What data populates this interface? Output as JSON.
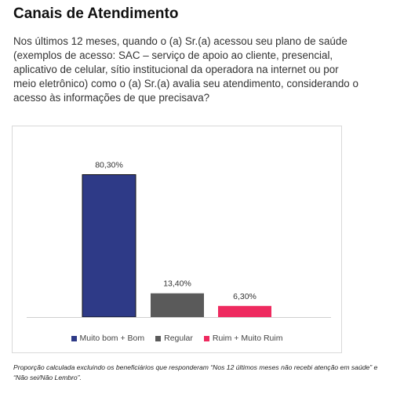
{
  "header": {
    "title": "Canais de Atendimento",
    "question": "Nos últimos 12 meses, quando o (a) Sr.(a) acessou seu plano de saúde (exemplos de acesso: SAC – serviço de apoio ao cliente, presencial, aplicativo de celular, sítio institucional da operadora na internet ou por meio eletrônico) como o (a) Sr.(a) avalia seu atendimento, considerando o acesso às informações de que precisava?"
  },
  "chart_data": {
    "type": "bar",
    "title": "",
    "xlabel": "",
    "ylabel": "",
    "ylim": [
      0,
      100
    ],
    "grid": false,
    "legend_position": "bottom",
    "categories": [
      "Muito bom + Bom",
      "Regular",
      "Ruim + Muito Ruim"
    ],
    "values": [
      80.3,
      13.4,
      6.3
    ],
    "data_labels": [
      "80,30%",
      "13,40%",
      "6,30%"
    ],
    "colors": [
      "#2e3a87",
      "#5a5a5a",
      "#ee2a5f"
    ]
  },
  "footnote": "Proporção calculada excluindo os beneficiários que responderam “Nos 12 últimos meses não recebi atenção em saúde” e “Não sei/Não Lembro”."
}
